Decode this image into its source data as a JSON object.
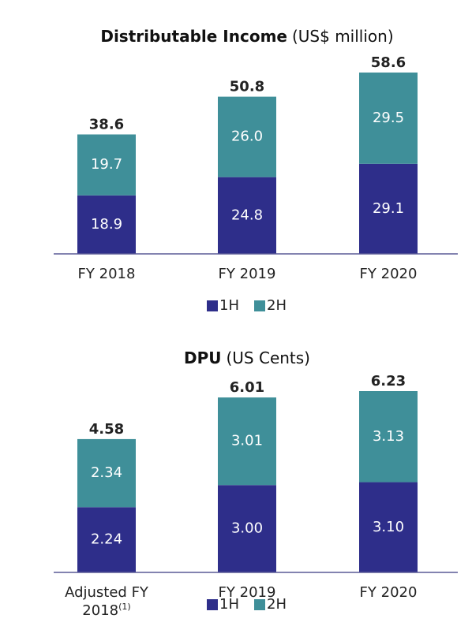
{
  "chart_data": [
    {
      "type": "stacked-bar",
      "title": "Distributable Income",
      "units": "(US$ million)",
      "categories": [
        "FY 2018",
        "FY 2019",
        "FY 2020"
      ],
      "series": [
        {
          "name": "1H",
          "color": "#2e2e8a",
          "values": [
            18.9,
            24.8,
            29.1
          ]
        },
        {
          "name": "2H",
          "color": "#3f8f99",
          "values": [
            19.7,
            26.0,
            29.5
          ],
          "value_labels": [
            "19.7",
            "26.0",
            "29.5"
          ]
        }
      ],
      "totals": [
        38.6,
        50.8,
        58.6
      ],
      "legend": "bottom"
    },
    {
      "type": "stacked-bar",
      "title": "DPU",
      "units": "(US Cents)",
      "categories": [
        "Adjusted FY 2018",
        "FY 2019",
        "FY 2020"
      ],
      "first_category_note": "(1)",
      "series": [
        {
          "name": "1H",
          "color": "#2e2e8a",
          "values": [
            2.24,
            3.0,
            3.1
          ],
          "value_labels": [
            "2.24",
            "3.00",
            "3.10"
          ]
        },
        {
          "name": "2H",
          "color": "#3f8f99",
          "values": [
            2.34,
            3.01,
            3.13
          ]
        }
      ],
      "totals": [
        4.58,
        6.01,
        6.23
      ],
      "legend": "bottom"
    }
  ]
}
